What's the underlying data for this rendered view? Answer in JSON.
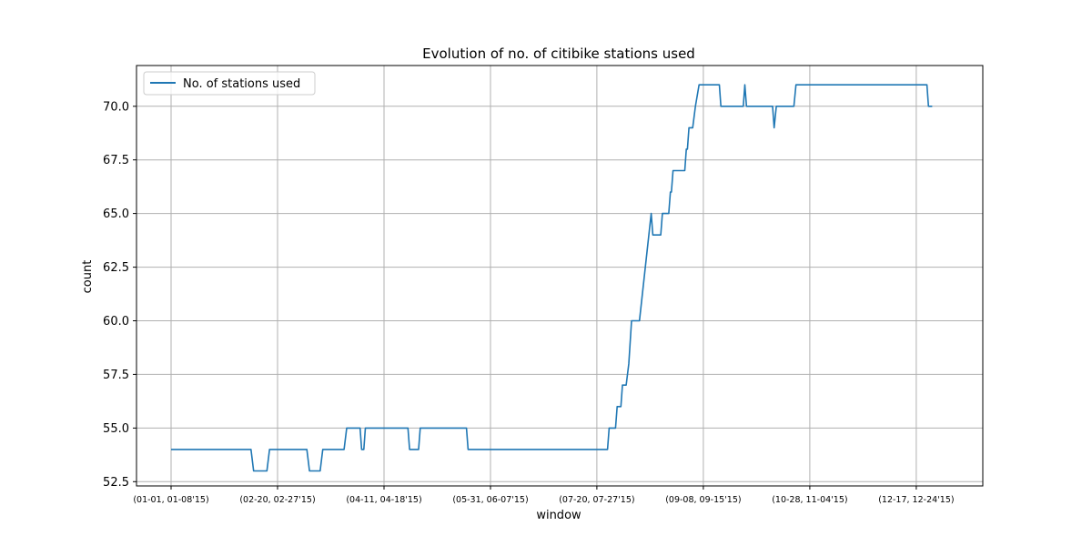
{
  "chart_data": {
    "type": "line",
    "title": "Evolution of no. of citibike stations used",
    "xlabel": "window",
    "ylabel": "count",
    "ylim": [
      52.3,
      71.9
    ],
    "xlim": [
      -6.5,
      152.5
    ],
    "grid": true,
    "legend_position": "upper-left",
    "y_ticks": [
      {
        "value": 52.5,
        "label": "52.5"
      },
      {
        "value": 55.0,
        "label": "55.0"
      },
      {
        "value": 57.5,
        "label": "57.5"
      },
      {
        "value": 60.0,
        "label": "60.0"
      },
      {
        "value": 62.5,
        "label": "62.5"
      },
      {
        "value": 65.0,
        "label": "65.0"
      },
      {
        "value": 67.5,
        "label": "67.5"
      },
      {
        "value": 70.0,
        "label": "70.0"
      }
    ],
    "x_ticks": [
      {
        "value": 0,
        "label": "(01-01, 01-08'15)"
      },
      {
        "value": 20,
        "label": "(02-20, 02-27'15)"
      },
      {
        "value": 40,
        "label": "(04-11, 04-18'15)"
      },
      {
        "value": 60,
        "label": "(05-31, 06-07'15)"
      },
      {
        "value": 80,
        "label": "(07-20, 07-27'15)"
      },
      {
        "value": 100,
        "label": "(09-08, 09-15'15)"
      },
      {
        "value": 120,
        "label": "(10-28, 11-04'15)"
      },
      {
        "value": 140,
        "label": "(12-17, 12-24'15)"
      }
    ],
    "series": [
      {
        "name": "No. of stations used",
        "color": "#1f77b4",
        "points": [
          [
            0,
            54
          ],
          [
            15,
            54
          ],
          [
            15.5,
            53
          ],
          [
            18,
            53
          ],
          [
            18.5,
            54
          ],
          [
            25.5,
            54
          ],
          [
            26,
            53
          ],
          [
            28,
            53
          ],
          [
            28.5,
            54
          ],
          [
            32.5,
            54
          ],
          [
            33,
            55
          ],
          [
            35.5,
            55
          ],
          [
            35.8,
            54
          ],
          [
            36.2,
            54
          ],
          [
            36.5,
            55
          ],
          [
            44.5,
            55
          ],
          [
            44.8,
            54
          ],
          [
            46.5,
            54
          ],
          [
            46.8,
            55
          ],
          [
            55.5,
            55
          ],
          [
            55.8,
            54
          ],
          [
            82,
            54
          ],
          [
            82.3,
            55
          ],
          [
            83.5,
            55
          ],
          [
            83.8,
            56
          ],
          [
            84.5,
            56
          ],
          [
            84.8,
            57
          ],
          [
            85.5,
            57
          ],
          [
            86,
            58
          ],
          [
            86.5,
            60
          ],
          [
            88,
            60
          ],
          [
            90.2,
            65
          ],
          [
            90.5,
            64
          ],
          [
            92,
            64
          ],
          [
            92.3,
            65
          ],
          [
            93.5,
            65
          ],
          [
            93.8,
            66
          ],
          [
            94,
            66
          ],
          [
            94.3,
            67
          ],
          [
            96.5,
            67
          ],
          [
            96.8,
            68
          ],
          [
            97,
            68
          ],
          [
            97.3,
            69
          ],
          [
            98,
            69
          ],
          [
            98.5,
            70
          ],
          [
            99.2,
            71
          ],
          [
            103,
            71
          ],
          [
            103.3,
            70
          ],
          [
            107.5,
            70
          ],
          [
            107.8,
            71
          ],
          [
            108.1,
            70
          ],
          [
            113,
            70
          ],
          [
            113.3,
            69
          ],
          [
            113.7,
            70
          ],
          [
            117,
            70
          ],
          [
            117.4,
            71
          ],
          [
            142,
            71
          ],
          [
            142.3,
            70
          ],
          [
            143,
            70
          ]
        ]
      }
    ]
  }
}
